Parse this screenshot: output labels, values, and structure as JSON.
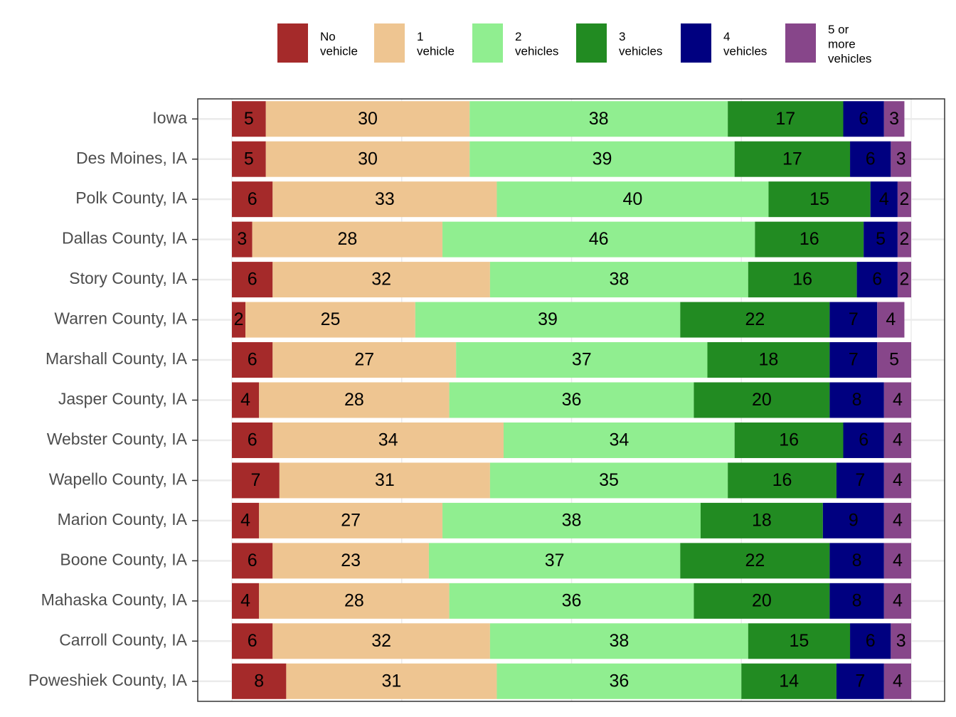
{
  "chart_data": {
    "type": "stacked-bar-horizontal",
    "categories": [
      "Iowa",
      "Des Moines, IA",
      "Polk County, IA",
      "Dallas County, IA",
      "Story County, IA",
      "Warren County, IA",
      "Marshall County, IA",
      "Jasper County, IA",
      "Webster County, IA",
      "Wapello County, IA",
      "Marion County, IA",
      "Boone County, IA",
      "Mahaska County, IA",
      "Carroll County, IA",
      "Poweshiek County, IA"
    ],
    "series": [
      {
        "name": "No\nvehicle",
        "color": "#a52a2a",
        "values": [
          5,
          5,
          6,
          3,
          6,
          2,
          6,
          4,
          6,
          7,
          4,
          6,
          4,
          6,
          8
        ]
      },
      {
        "name": "1\nvehicle",
        "color": "#eec591",
        "values": [
          30,
          30,
          33,
          28,
          32,
          25,
          27,
          28,
          34,
          31,
          27,
          23,
          28,
          32,
          31
        ]
      },
      {
        "name": "2\nvehicles",
        "color": "#90ee90",
        "values": [
          38,
          39,
          40,
          46,
          38,
          39,
          37,
          36,
          34,
          35,
          38,
          37,
          36,
          38,
          36
        ]
      },
      {
        "name": "3\nvehicles",
        "color": "#228b22",
        "values": [
          17,
          17,
          15,
          16,
          16,
          22,
          18,
          20,
          16,
          16,
          18,
          22,
          20,
          15,
          14
        ]
      },
      {
        "name": "4\nvehicles",
        "color": "#000080",
        "values": [
          6,
          6,
          4,
          5,
          6,
          7,
          7,
          8,
          6,
          7,
          9,
          8,
          8,
          6,
          7
        ]
      },
      {
        "name": "5 or\nmore\nvehicles",
        "color": "#87468a",
        "values": [
          3,
          3,
          2,
          2,
          2,
          4,
          5,
          4,
          4,
          4,
          4,
          4,
          4,
          3,
          4
        ]
      }
    ],
    "xlim": [
      0,
      100
    ],
    "xticks": [
      0,
      25,
      50,
      75,
      100
    ],
    "grid": true,
    "legend": "top"
  }
}
